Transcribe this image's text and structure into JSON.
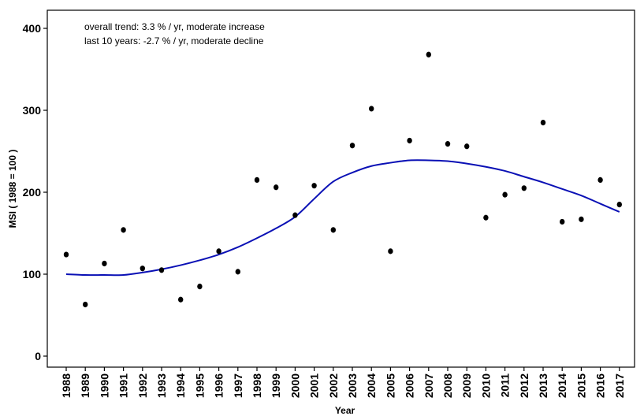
{
  "chart_data": {
    "type": "scatter",
    "xlabel": "Year",
    "ylabel": "MSI ( 1988 = 100 )",
    "ylim": [
      -15,
      420
    ],
    "yticks": [
      0,
      100,
      200,
      300,
      400
    ],
    "grid": false,
    "annotations": [
      "overall trend: 3.3 % / yr, moderate increase",
      "last 10 years: -2.7 % / yr, moderate decline"
    ],
    "categories": [
      "1988",
      "1989",
      "1990",
      "1991",
      "1992",
      "1993",
      "1994",
      "1995",
      "1996",
      "1997",
      "1998",
      "1999",
      "2000",
      "2001",
      "2002",
      "2003",
      "2004",
      "2005",
      "2006",
      "2007",
      "2008",
      "2009",
      "2010",
      "2011",
      "2012",
      "2013",
      "2014",
      "2015",
      "2016",
      "2017"
    ],
    "series": [
      {
        "kind": "points",
        "color": "#000000",
        "values": [
          124,
          63,
          113,
          154,
          107,
          105,
          69,
          85,
          128,
          103,
          215,
          206,
          172,
          208,
          154,
          257,
          302,
          128,
          263,
          368,
          259,
          256,
          169,
          197,
          205,
          285,
          164,
          167,
          215,
          185
        ]
      },
      {
        "kind": "trend",
        "color": "#0a10b5",
        "values": [
          100,
          99,
          99,
          99,
          102,
          106,
          111,
          117,
          124,
          133,
          144,
          156,
          170,
          192,
          213,
          224,
          232,
          236,
          239,
          239,
          238,
          235,
          231,
          226,
          219,
          212,
          204,
          196,
          186,
          176
        ]
      }
    ]
  }
}
